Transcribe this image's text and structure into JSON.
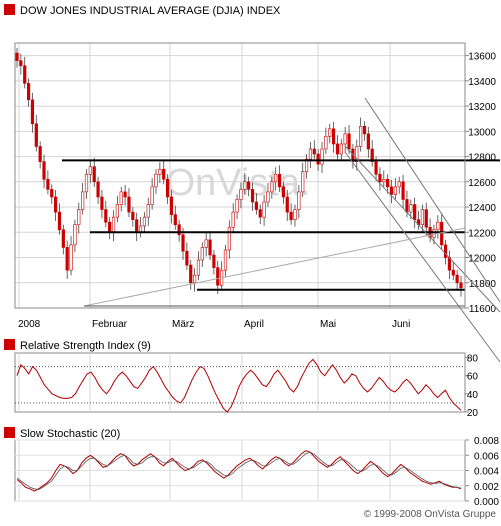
{
  "chart_data": [
    {
      "type": "candlestick",
      "title": "DOW JONES INDUSTRIAL AVERAGE (DJIA) INDEX",
      "x_labels": [
        "2008",
        "Februar",
        "März",
        "April",
        "Mai",
        "Juni"
      ],
      "y_ticks": [
        11600,
        11800,
        12000,
        12200,
        12400,
        12600,
        12800,
        13000,
        13200,
        13400,
        13600
      ],
      "ylim": [
        11600,
        13700
      ],
      "watermark": "OnVista.",
      "grid": true,
      "close_series": [
        13560,
        13520,
        13380,
        13250,
        13060,
        12880,
        12760,
        12620,
        12540,
        12480,
        12360,
        12220,
        12080,
        11900,
        12100,
        12260,
        12380,
        12520,
        12660,
        12720,
        12600,
        12480,
        12380,
        12280,
        12200,
        12320,
        12420,
        12520,
        12480,
        12360,
        12300,
        12200,
        12250,
        12320,
        12420,
        12560,
        12660,
        12700,
        12620,
        12480,
        12340,
        12260,
        12180,
        12050,
        11940,
        11800,
        11860,
        11980,
        12080,
        12140,
        12020,
        11920,
        11780,
        11900,
        12060,
        12240,
        12360,
        12460,
        12540,
        12600,
        12540,
        12440,
        12380,
        12320,
        12440,
        12520,
        12600,
        12660,
        12560,
        12480,
        12360,
        12300,
        12380,
        12520,
        12680,
        12780,
        12860,
        12820,
        12740,
        12860,
        12960,
        13020,
        12900,
        12820,
        12900,
        12980,
        12860,
        12760,
        12880,
        13040,
        12980,
        12860,
        12760,
        12660,
        12600,
        12620,
        12560,
        12500,
        12560,
        12600,
        12460,
        12360,
        12420,
        12300,
        12260,
        12380,
        12240,
        12160,
        12220,
        12280,
        12100,
        12000,
        11900,
        11860,
        11800,
        11760
      ],
      "lines": [
        {
          "name": "level-12770",
          "value": 12770
        },
        {
          "name": "level-12200",
          "value": 12200
        },
        {
          "name": "level-11745",
          "value": 11745
        }
      ]
    },
    {
      "type": "line",
      "title": "Relative Strength Index (9)",
      "y_ticks": [
        20,
        40,
        60,
        80
      ],
      "ylim": [
        20,
        85
      ],
      "dotted_levels": [
        30,
        70
      ],
      "values": [
        60,
        72,
        68,
        62,
        70,
        66,
        58,
        50,
        45,
        40,
        38,
        36,
        35,
        35,
        36,
        40,
        48,
        55,
        62,
        64,
        58,
        50,
        44,
        40,
        46,
        54,
        60,
        64,
        60,
        54,
        48,
        46,
        52,
        58,
        66,
        70,
        64,
        56,
        48,
        42,
        36,
        32,
        30,
        36,
        46,
        56,
        64,
        70,
        68,
        60,
        50,
        40,
        32,
        24,
        20,
        26,
        36,
        48,
        56,
        62,
        66,
        62,
        56,
        50,
        48,
        54,
        62,
        66,
        60,
        54,
        46,
        42,
        48,
        58,
        66,
        74,
        78,
        72,
        64,
        60,
        66,
        72,
        66,
        58,
        52,
        56,
        62,
        60,
        52,
        46,
        42,
        46,
        52,
        58,
        54,
        48,
        44,
        42,
        46,
        52,
        56,
        52,
        46,
        40,
        44,
        50,
        46,
        40,
        36,
        40,
        44,
        36,
        30,
        26,
        22
      ]
    },
    {
      "type": "line",
      "title": "Slow Stochastic (20)",
      "y_ticks": [
        "0.000",
        "0.002",
        "0.004",
        "0.006",
        "0.008"
      ],
      "ylim": [
        0,
        0.008
      ],
      "series": [
        {
          "values": [
            0.0028,
            0.0024,
            0.0018,
            0.0016,
            0.0013,
            0.0016,
            0.002,
            0.0024,
            0.003,
            0.004,
            0.0048,
            0.0046,
            0.0042,
            0.0036,
            0.004,
            0.005,
            0.0056,
            0.006,
            0.0056,
            0.005,
            0.0044,
            0.0046,
            0.0052,
            0.0058,
            0.0062,
            0.006,
            0.0052,
            0.0046,
            0.0048,
            0.0054,
            0.0058,
            0.0062,
            0.0058,
            0.005,
            0.0046,
            0.0052,
            0.0056,
            0.005,
            0.0044,
            0.004,
            0.0042,
            0.0046,
            0.0052,
            0.0054,
            0.005,
            0.0044,
            0.0038,
            0.0034,
            0.003,
            0.0034,
            0.004,
            0.0046,
            0.005,
            0.0054,
            0.0056,
            0.0052,
            0.0046,
            0.0042,
            0.0048,
            0.0054,
            0.0058,
            0.0056,
            0.005,
            0.0046,
            0.005,
            0.0056,
            0.0062,
            0.0066,
            0.0064,
            0.0058,
            0.0052,
            0.0048,
            0.0044,
            0.0048,
            0.0054,
            0.0058,
            0.0052,
            0.0046,
            0.004,
            0.0036,
            0.004,
            0.0046,
            0.0052,
            0.0048,
            0.0042,
            0.0036,
            0.0032,
            0.0036,
            0.0042,
            0.0048,
            0.0044,
            0.0038,
            0.0034,
            0.003,
            0.0026,
            0.0024,
            0.0022,
            0.0024,
            0.0026,
            0.0022,
            0.002,
            0.0018,
            0.0018,
            0.0016
          ]
        },
        {
          "values": [
            0.003,
            0.0026,
            0.0022,
            0.0018,
            0.0016,
            0.0015,
            0.0018,
            0.0022,
            0.0026,
            0.0034,
            0.0042,
            0.0046,
            0.0044,
            0.004,
            0.004,
            0.0046,
            0.0052,
            0.0056,
            0.0056,
            0.0052,
            0.0048,
            0.0046,
            0.005,
            0.0054,
            0.0058,
            0.006,
            0.0056,
            0.005,
            0.0048,
            0.005,
            0.0055,
            0.0058,
            0.0058,
            0.0054,
            0.005,
            0.005,
            0.0053,
            0.0052,
            0.0048,
            0.0044,
            0.0042,
            0.0044,
            0.0048,
            0.0052,
            0.0052,
            0.0048,
            0.0042,
            0.0038,
            0.0034,
            0.0033,
            0.0036,
            0.0042,
            0.0046,
            0.005,
            0.0053,
            0.0053,
            0.005,
            0.0046,
            0.0046,
            0.005,
            0.0054,
            0.0056,
            0.0053,
            0.0049,
            0.0048,
            0.0052,
            0.0057,
            0.0062,
            0.0064,
            0.0061,
            0.0056,
            0.0051,
            0.0047,
            0.0046,
            0.005,
            0.0054,
            0.0054,
            0.005,
            0.0045,
            0.004,
            0.0039,
            0.0042,
            0.0047,
            0.0048,
            0.0045,
            0.004,
            0.0035,
            0.0034,
            0.0038,
            0.0043,
            0.0044,
            0.0041,
            0.0037,
            0.0033,
            0.0029,
            0.0026,
            0.0024,
            0.0023,
            0.0024,
            0.0023,
            0.0021,
            0.0019,
            0.0018,
            0.0017
          ]
        }
      ]
    }
  ],
  "copyright": "© 1999-2008 OnVista Gruppe",
  "colors": {
    "price": "#cc0000",
    "sub": "#b00000",
    "grid": "#d4d4d4"
  }
}
